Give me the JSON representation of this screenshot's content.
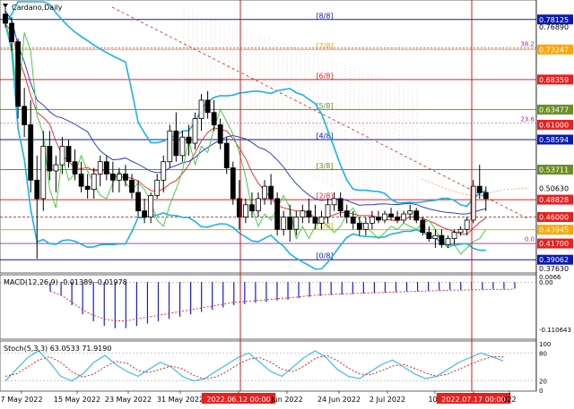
{
  "title": "Cardano,Daily",
  "colors": {
    "bb": "#1ab2ee",
    "ma_red": "#e8201e",
    "ma_green": "#33cc33",
    "blue_line": "#1b2bc4",
    "murrey_blue": "#0a1ab0",
    "murrey_red": "#e8201e",
    "murrey_olive": "#6b8e23",
    "murrey_orange": "#ffa500",
    "murrey_purple": "#993399",
    "candle": "#000000",
    "macd_hist": "#1b1bd4",
    "macd_signal": "#e8201e",
    "stoch_main": "#1ab2ee",
    "stoch_signal": "#e8201e",
    "marker": "#d01818"
  },
  "chart_data": [
    {
      "type": "candlestick",
      "title": "Cardano,Daily",
      "ylim": [
        0.372,
        0.81
      ],
      "price_labels": [
        {
          "text": "0.78125",
          "style": "blue"
        },
        {
          "text": "0.76890",
          "style": "plain"
        },
        {
          "text": "0.73247",
          "style": "orange"
        },
        {
          "text": "0.68359",
          "style": "red"
        },
        {
          "text": "0.63477",
          "style": "olive"
        },
        {
          "text": "0.61000",
          "style": "red"
        },
        {
          "text": "0.58594",
          "style": "blue"
        },
        {
          "text": "0.53711",
          "style": "olive"
        },
        {
          "text": "0.50630",
          "style": "plain"
        },
        {
          "text": "0.48828",
          "style": "red"
        },
        {
          "text": "0.46000",
          "style": "red"
        },
        {
          "text": "0.43945",
          "style": "orange"
        },
        {
          "text": "0.41700",
          "style": "red"
        },
        {
          "text": "0.39062",
          "style": "blue"
        },
        {
          "text": "0.37630",
          "style": "plain"
        }
      ],
      "murrey_levels": [
        {
          "label": "[8/8]",
          "value": 0.78125,
          "color": "#0a1ab0"
        },
        {
          "label": "[7/8]",
          "value": 0.73247,
          "color": "#ffa500"
        },
        {
          "label": "[6/8]",
          "value": 0.68359,
          "color": "#e8201e"
        },
        {
          "label": "[5/8]",
          "value": 0.63477,
          "color": "#6b8e23"
        },
        {
          "label": "[4/8]",
          "value": 0.58594,
          "color": "#0a1ab0"
        },
        {
          "label": "[3/8]",
          "value": 0.53711,
          "color": "#6b8e23"
        },
        {
          "label": "[2/8]",
          "value": 0.48828,
          "color": "#e8201e"
        },
        {
          "label": "[1/8]",
          "value": 0.43945,
          "color": "#ffa500"
        },
        {
          "label": "[0/8]",
          "value": 0.39062,
          "color": "#0a1ab0"
        }
      ],
      "fibo": [
        {
          "label": "38.2",
          "value": 0.7347
        },
        {
          "label": "23.6",
          "value": 0.613
        },
        {
          "label": "0.0",
          "value": 0.4178
        }
      ],
      "candles": [
        [
          0.79,
          0.8,
          0.768,
          0.775
        ],
        [
          0.775,
          0.785,
          0.73,
          0.745
        ],
        [
          0.745,
          0.75,
          0.62,
          0.64
        ],
        [
          0.64,
          0.67,
          0.59,
          0.61
        ],
        [
          0.61,
          0.65,
          0.5,
          0.52
        ],
        [
          0.52,
          0.56,
          0.392,
          0.49
        ],
        [
          0.49,
          0.6,
          0.47,
          0.575
        ],
        [
          0.575,
          0.6,
          0.52,
          0.535
        ],
        [
          0.535,
          0.56,
          0.5,
          0.545
        ],
        [
          0.545,
          0.59,
          0.53,
          0.575
        ],
        [
          0.575,
          0.585,
          0.54,
          0.55
        ],
        [
          0.55,
          0.57,
          0.52,
          0.53
        ],
        [
          0.53,
          0.55,
          0.5,
          0.51
        ],
        [
          0.51,
          0.53,
          0.49,
          0.505
        ],
        [
          0.505,
          0.54,
          0.49,
          0.53
        ],
        [
          0.53,
          0.56,
          0.51,
          0.55
        ],
        [
          0.55,
          0.56,
          0.52,
          0.53
        ],
        [
          0.53,
          0.55,
          0.5,
          0.52
        ],
        [
          0.52,
          0.54,
          0.5,
          0.53
        ],
        [
          0.53,
          0.545,
          0.51,
          0.52
        ],
        [
          0.52,
          0.53,
          0.49,
          0.5
        ],
        [
          0.5,
          0.52,
          0.46,
          0.47
        ],
        [
          0.47,
          0.49,
          0.45,
          0.46
        ],
        [
          0.46,
          0.5,
          0.45,
          0.495
        ],
        [
          0.495,
          0.53,
          0.49,
          0.52
        ],
        [
          0.52,
          0.56,
          0.5,
          0.55
        ],
        [
          0.55,
          0.61,
          0.54,
          0.6
        ],
        [
          0.6,
          0.63,
          0.55,
          0.56
        ],
        [
          0.56,
          0.6,
          0.55,
          0.59
        ],
        [
          0.59,
          0.61,
          0.56,
          0.58
        ],
        [
          0.58,
          0.63,
          0.57,
          0.62
        ],
        [
          0.62,
          0.66,
          0.6,
          0.65
        ],
        [
          0.65,
          0.665,
          0.62,
          0.63
        ],
        [
          0.63,
          0.65,
          0.6,
          0.61
        ],
        [
          0.61,
          0.62,
          0.57,
          0.58
        ],
        [
          0.58,
          0.59,
          0.53,
          0.54
        ],
        [
          0.54,
          0.55,
          0.48,
          0.49
        ],
        [
          0.49,
          0.52,
          0.44,
          0.46
        ],
        [
          0.46,
          0.49,
          0.45,
          0.48
        ],
        [
          0.48,
          0.5,
          0.46,
          0.47
        ],
        [
          0.47,
          0.5,
          0.46,
          0.49
        ],
        [
          0.49,
          0.52,
          0.48,
          0.51
        ],
        [
          0.51,
          0.53,
          0.48,
          0.49
        ],
        [
          0.49,
          0.5,
          0.43,
          0.44
        ],
        [
          0.44,
          0.47,
          0.43,
          0.46
        ],
        [
          0.46,
          0.48,
          0.42,
          0.44
        ],
        [
          0.44,
          0.47,
          0.43,
          0.46
        ],
        [
          0.46,
          0.48,
          0.45,
          0.47
        ],
        [
          0.47,
          0.49,
          0.45,
          0.46
        ],
        [
          0.46,
          0.48,
          0.44,
          0.45
        ],
        [
          0.45,
          0.47,
          0.44,
          0.46
        ],
        [
          0.46,
          0.49,
          0.45,
          0.48
        ],
        [
          0.48,
          0.5,
          0.47,
          0.49
        ],
        [
          0.49,
          0.5,
          0.46,
          0.47
        ],
        [
          0.47,
          0.48,
          0.45,
          0.46
        ],
        [
          0.46,
          0.47,
          0.44,
          0.45
        ],
        [
          0.45,
          0.46,
          0.43,
          0.44
        ],
        [
          0.44,
          0.46,
          0.43,
          0.45
        ],
        [
          0.45,
          0.47,
          0.44,
          0.46
        ],
        [
          0.46,
          0.47,
          0.45,
          0.455
        ],
        [
          0.455,
          0.47,
          0.45,
          0.465
        ],
        [
          0.465,
          0.475,
          0.455,
          0.46
        ],
        [
          0.46,
          0.47,
          0.45,
          0.455
        ],
        [
          0.455,
          0.47,
          0.45,
          0.465
        ],
        [
          0.465,
          0.48,
          0.455,
          0.47
        ],
        [
          0.47,
          0.475,
          0.45,
          0.455
        ],
        [
          0.455,
          0.46,
          0.43,
          0.435
        ],
        [
          0.435,
          0.445,
          0.42,
          0.425
        ],
        [
          0.425,
          0.44,
          0.41,
          0.43
        ],
        [
          0.43,
          0.44,
          0.41,
          0.415
        ],
        [
          0.415,
          0.43,
          0.41,
          0.425
        ],
        [
          0.425,
          0.44,
          0.415,
          0.435
        ],
        [
          0.435,
          0.445,
          0.43,
          0.44
        ],
        [
          0.44,
          0.46,
          0.43,
          0.455
        ],
        [
          0.455,
          0.52,
          0.45,
          0.51
        ],
        [
          0.51,
          0.545,
          0.49,
          0.5
        ],
        [
          0.5,
          0.51,
          0.47,
          0.49
        ]
      ],
      "annotations": [
        "38.2",
        "23.6",
        "0.0"
      ]
    },
    {
      "type": "bar",
      "title": "MACD(12,26,9) -0.01389 -0.01978",
      "ylim": [
        -0.12,
        0.012
      ],
      "price_labels": [
        "0.0066",
        "0.00",
        "-0.110643"
      ],
      "histogram": [
        -0.02,
        -0.03,
        -0.05,
        -0.07,
        -0.085,
        -0.095,
        -0.1,
        -0.1,
        -0.095,
        -0.09,
        -0.085,
        -0.08,
        -0.075,
        -0.07,
        -0.065,
        -0.06,
        -0.055,
        -0.05,
        -0.048,
        -0.045,
        -0.043,
        -0.04,
        -0.038,
        -0.035,
        -0.032,
        -0.03,
        -0.028,
        -0.027,
        -0.026,
        -0.025,
        -0.024,
        -0.023,
        -0.022,
        -0.021,
        -0.02,
        -0.019,
        -0.018,
        -0.017,
        -0.017,
        -0.016,
        -0.016,
        -0.015,
        -0.015,
        -0.014
      ]
    },
    {
      "type": "line",
      "title": "Stoch(5,3,3) 63.0533 71.9190",
      "ylim": [
        0,
        100
      ],
      "price_labels": [
        "100",
        "80",
        "20",
        "0"
      ],
      "series": [
        {
          "values": [
            20,
            45,
            70,
            85,
            60,
            30,
            20,
            35,
            60,
            75,
            55,
            40,
            30,
            45,
            60,
            50,
            30,
            20,
            25,
            40,
            55,
            70,
            80,
            60,
            40,
            30,
            50,
            70,
            85,
            70,
            45,
            30,
            25,
            40,
            55,
            65,
            50,
            35,
            25,
            30,
            45,
            60,
            70,
            80,
            72,
            63
          ]
        },
        {
          "values": [
            30,
            35,
            50,
            65,
            72,
            60,
            40,
            28,
            35,
            50,
            62,
            58,
            42,
            38,
            45,
            52,
            46,
            32,
            24,
            28,
            40,
            55,
            67,
            70,
            60,
            45,
            40,
            52,
            68,
            75,
            64,
            48,
            35,
            33,
            42,
            52,
            55,
            47,
            37,
            30,
            35,
            45,
            55,
            65,
            72,
            72
          ]
        }
      ]
    }
  ],
  "x_axis": {
    "labels": [
      "7 May 2022",
      "15 May 2022",
      "23 May 2022",
      "31 May 2022",
      "2022.06.12 00:00",
      "Jun 2022",
      "24 Jun 2022",
      "2 Jul 2022",
      "10 J",
      "2022.07.17 00:00",
      "022"
    ]
  }
}
